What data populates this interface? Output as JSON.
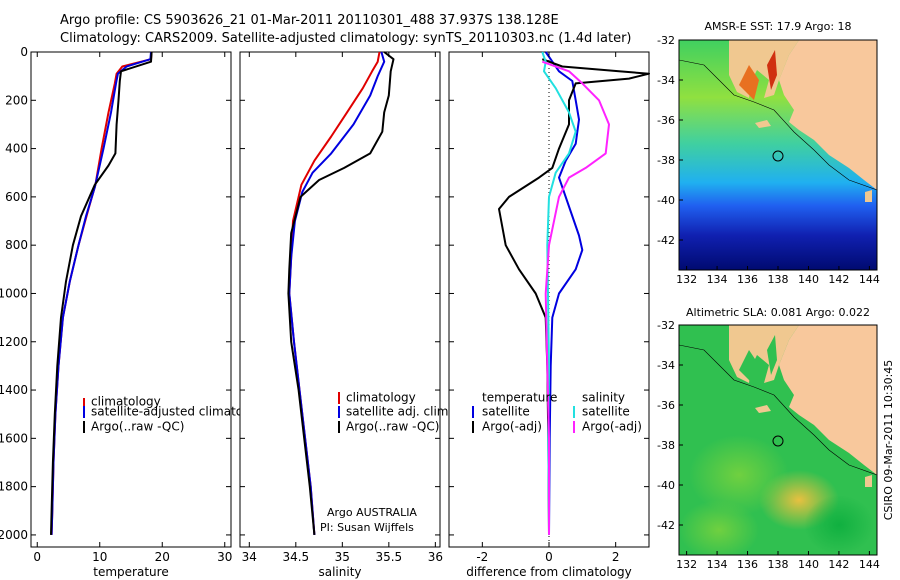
{
  "header": {
    "line1": "Argo profile: CS 5903626_21 01-Mar-2011 20110301_488 37.937S 138.128E",
    "line2": "Climatology: CARS2009. Satellite-adjusted climatology: synTS_20110303.nc (1.4d later)"
  },
  "footer": {
    "argo_credit": "Argo AUSTRALIA",
    "pi_credit": "PI: Susan Wijffels",
    "stamp": "CSIRO 09-Mar-2011 10:30:45"
  },
  "colors": {
    "climatology": "#e00000",
    "satellite": "#0000e0",
    "argo": "#000000",
    "sat_diff": "#22e0e0",
    "argo_sal_diff": "#ff22ff"
  },
  "chart_data": [
    {
      "type": "line",
      "xlabel": "temperature",
      "ylabel": "",
      "xlim": [
        -1,
        31
      ],
      "ylim": [
        2050,
        0
      ],
      "xticks": [
        "0",
        "10",
        "20",
        "30"
      ],
      "yticks": [
        "0",
        "200",
        "400",
        "600",
        "800",
        "1000",
        "1200",
        "1400",
        "1600",
        "1800",
        "2000"
      ],
      "legend": [
        "climatology",
        "satellite-adjusted climatology",
        "Argo(..raw -QC)"
      ],
      "series": [
        {
          "name": "climatology",
          "color": "#e00000",
          "points": [
            [
              18.3,
              0
            ],
            [
              18.2,
              30
            ],
            [
              13.6,
              60
            ],
            [
              12.7,
              90
            ],
            [
              12.4,
              130
            ],
            [
              11.4,
              250
            ],
            [
              10.3,
              400
            ],
            [
              9.3,
              550
            ],
            [
              8.2,
              650
            ],
            [
              6.6,
              800
            ],
            [
              5.2,
              950
            ],
            [
              4.1,
              1100
            ],
            [
              3.4,
              1300
            ],
            [
              2.9,
              1500
            ],
            [
              2.6,
              1700
            ],
            [
              2.4,
              1900
            ],
            [
              2.3,
              2000
            ]
          ]
        },
        {
          "name": "satellite-adjusted climatology",
          "color": "#0000e0",
          "points": [
            [
              18.2,
              0
            ],
            [
              18.1,
              30
            ],
            [
              14.3,
              60
            ],
            [
              12.9,
              90
            ],
            [
              12.6,
              130
            ],
            [
              11.8,
              250
            ],
            [
              10.6,
              400
            ],
            [
              9.2,
              560
            ],
            [
              7.8,
              680
            ],
            [
              6.6,
              800
            ],
            [
              5.2,
              950
            ],
            [
              4.1,
              1100
            ],
            [
              3.4,
              1300
            ],
            [
              2.9,
              1500
            ],
            [
              2.6,
              1700
            ],
            [
              2.4,
              1900
            ],
            [
              2.3,
              2000
            ]
          ]
        },
        {
          "name": "Argo(..raw -QC)",
          "color": "#000000",
          "points": [
            [
              18.3,
              0
            ],
            [
              18.2,
              40
            ],
            [
              13.4,
              80
            ],
            [
              13.2,
              120
            ],
            [
              13.0,
              200
            ],
            [
              12.7,
              300
            ],
            [
              12.5,
              420
            ],
            [
              11.4,
              470
            ],
            [
              9.2,
              550
            ],
            [
              7.0,
              680
            ],
            [
              5.7,
              800
            ],
            [
              4.6,
              950
            ],
            [
              3.8,
              1100
            ],
            [
              3.2,
              1300
            ],
            [
              2.8,
              1500
            ],
            [
              2.5,
              1700
            ],
            [
              2.3,
              1900
            ],
            [
              2.2,
              2000
            ]
          ]
        }
      ]
    },
    {
      "type": "line",
      "xlabel": "salinity",
      "xlim": [
        33.9,
        36.05
      ],
      "ylim": [
        2050,
        0
      ],
      "xticks": [
        "34",
        "34.5",
        "35",
        "35.5",
        "36"
      ],
      "legend": [
        "climatology",
        "satellite adj. clim.",
        "Argo(..raw -QC)"
      ],
      "series": [
        {
          "name": "climatology",
          "color": "#e00000",
          "points": [
            [
              35.4,
              0
            ],
            [
              35.38,
              40
            ],
            [
              35.32,
              80
            ],
            [
              35.22,
              150
            ],
            [
              35.05,
              250
            ],
            [
              34.88,
              350
            ],
            [
              34.7,
              450
            ],
            [
              34.56,
              550
            ],
            [
              34.47,
              700
            ],
            [
              34.45,
              850
            ],
            [
              34.43,
              1000
            ],
            [
              34.48,
              1200
            ],
            [
              34.54,
              1400
            ],
            [
              34.6,
              1600
            ],
            [
              34.66,
              1800
            ],
            [
              34.7,
              2000
            ]
          ]
        },
        {
          "name": "satellite adj. clim.",
          "color": "#0000e0",
          "points": [
            [
              35.42,
              0
            ],
            [
              35.45,
              40
            ],
            [
              35.38,
              100
            ],
            [
              35.3,
              180
            ],
            [
              35.12,
              300
            ],
            [
              34.88,
              420
            ],
            [
              34.68,
              500
            ],
            [
              34.57,
              580
            ],
            [
              34.49,
              700
            ],
            [
              34.45,
              850
            ],
            [
              34.43,
              1000
            ],
            [
              34.48,
              1200
            ],
            [
              34.54,
              1400
            ],
            [
              34.6,
              1600
            ],
            [
              34.66,
              1800
            ],
            [
              34.7,
              2000
            ]
          ]
        },
        {
          "name": "Argo(..raw -QC)",
          "color": "#000000",
          "points": [
            [
              35.45,
              0
            ],
            [
              35.55,
              30
            ],
            [
              35.52,
              80
            ],
            [
              35.5,
              180
            ],
            [
              35.45,
              250
            ],
            [
              35.43,
              330
            ],
            [
              35.3,
              420
            ],
            [
              35.02,
              480
            ],
            [
              34.75,
              530
            ],
            [
              34.55,
              600
            ],
            [
              34.45,
              750
            ],
            [
              34.43,
              900
            ],
            [
              34.42,
              1000
            ],
            [
              34.45,
              1200
            ],
            [
              34.53,
              1400
            ],
            [
              34.59,
              1600
            ],
            [
              34.65,
              1800
            ],
            [
              34.7,
              2000
            ]
          ]
        }
      ]
    },
    {
      "type": "line",
      "xlabel": "difference from climatology",
      "xlim": [
        -3,
        3
      ],
      "ylim": [
        2050,
        0
      ],
      "xticks": [
        "-2",
        "0",
        "2"
      ],
      "legend_left": [
        "temperature",
        "satellite",
        "Argo(-adj)"
      ],
      "legend_right": [
        "salinity",
        "satellite",
        "Argo(-adj)"
      ],
      "series": [
        {
          "name": "temperature satellite",
          "color": "#0000e0",
          "points": [
            [
              -0.1,
              0
            ],
            [
              0.3,
              80
            ],
            [
              0.7,
              120
            ],
            [
              0.8,
              200
            ],
            [
              0.9,
              280
            ],
            [
              0.8,
              380
            ],
            [
              0.5,
              450
            ],
            [
              0.3,
              520
            ],
            [
              0.6,
              640
            ],
            [
              0.9,
              760
            ],
            [
              1.0,
              820
            ],
            [
              0.8,
              900
            ],
            [
              0.3,
              1000
            ],
            [
              0.1,
              1100
            ],
            [
              0.05,
              1300
            ],
            [
              0.02,
              1600
            ],
            [
              0,
              2000
            ]
          ]
        },
        {
          "name": "temperature Argo(-adj)",
          "color": "#000000",
          "points": [
            [
              -0.2,
              30
            ],
            [
              0.4,
              60
            ],
            [
              2.1,
              80
            ],
            [
              3.0,
              90
            ],
            [
              2.4,
              110
            ],
            [
              0.8,
              130
            ],
            [
              0.6,
              200
            ],
            [
              0.6,
              300
            ],
            [
              0.3,
              400
            ],
            [
              0.1,
              480
            ],
            [
              -0.3,
              520
            ],
            [
              -1.2,
              600
            ],
            [
              -1.5,
              650
            ],
            [
              -1.3,
              800
            ],
            [
              -0.9,
              900
            ],
            [
              -0.4,
              1000
            ],
            [
              -0.1,
              1100
            ],
            [
              -0.05,
              1300
            ],
            [
              -0.02,
              1600
            ],
            [
              0,
              2000
            ]
          ]
        },
        {
          "name": "salinity satellite",
          "color": "#22e0e0",
          "points": [
            [
              -0.2,
              0
            ],
            [
              -0.1,
              40
            ],
            [
              -0.15,
              80
            ],
            [
              0.2,
              150
            ],
            [
              0.6,
              250
            ],
            [
              0.8,
              330
            ],
            [
              0.6,
              420
            ],
            [
              0.2,
              500
            ],
            [
              0.0,
              600
            ],
            [
              -0.05,
              800
            ],
            [
              -0.03,
              1000
            ],
            [
              0,
              1300
            ],
            [
              -0.02,
              1600
            ],
            [
              0,
              2000
            ]
          ]
        },
        {
          "name": "salinity Argo(-adj)",
          "color": "#ff22ff",
          "points": [
            [
              -0.2,
              40
            ],
            [
              0.6,
              80
            ],
            [
              1.0,
              130
            ],
            [
              1.5,
              200
            ],
            [
              1.8,
              300
            ],
            [
              1.7,
              420
            ],
            [
              1.1,
              480
            ],
            [
              0.6,
              520
            ],
            [
              0.3,
              600
            ],
            [
              0.0,
              800
            ],
            [
              -0.1,
              1000
            ],
            [
              -0.05,
              1300
            ],
            [
              0,
              1600
            ],
            [
              0,
              2000
            ]
          ]
        }
      ]
    },
    {
      "type": "heatmap",
      "title": "AMSR-E SST: 17.9 Argo: 18",
      "xlim": [
        131.5,
        144.5
      ],
      "ylim": [
        -43.5,
        -32
      ],
      "xticks": [
        "132",
        "134",
        "136",
        "138",
        "140",
        "142",
        "144"
      ],
      "yticks": [
        "-32",
        "-34",
        "-36",
        "-38",
        "-40",
        "-42"
      ],
      "marker": {
        "lon": 138.13,
        "lat": -37.94
      }
    },
    {
      "type": "heatmap",
      "title": "Altimetric SLA: 0.081 Argo: 0.022",
      "xlim": [
        131.5,
        144.5
      ],
      "ylim": [
        -43.5,
        -32
      ],
      "xticks": [
        "132",
        "134",
        "136",
        "138",
        "140",
        "142",
        "144"
      ],
      "yticks": [
        "-32",
        "-34",
        "-36",
        "-38",
        "-40",
        "-42"
      ],
      "marker": {
        "lon": 138.13,
        "lat": -37.94
      }
    }
  ]
}
